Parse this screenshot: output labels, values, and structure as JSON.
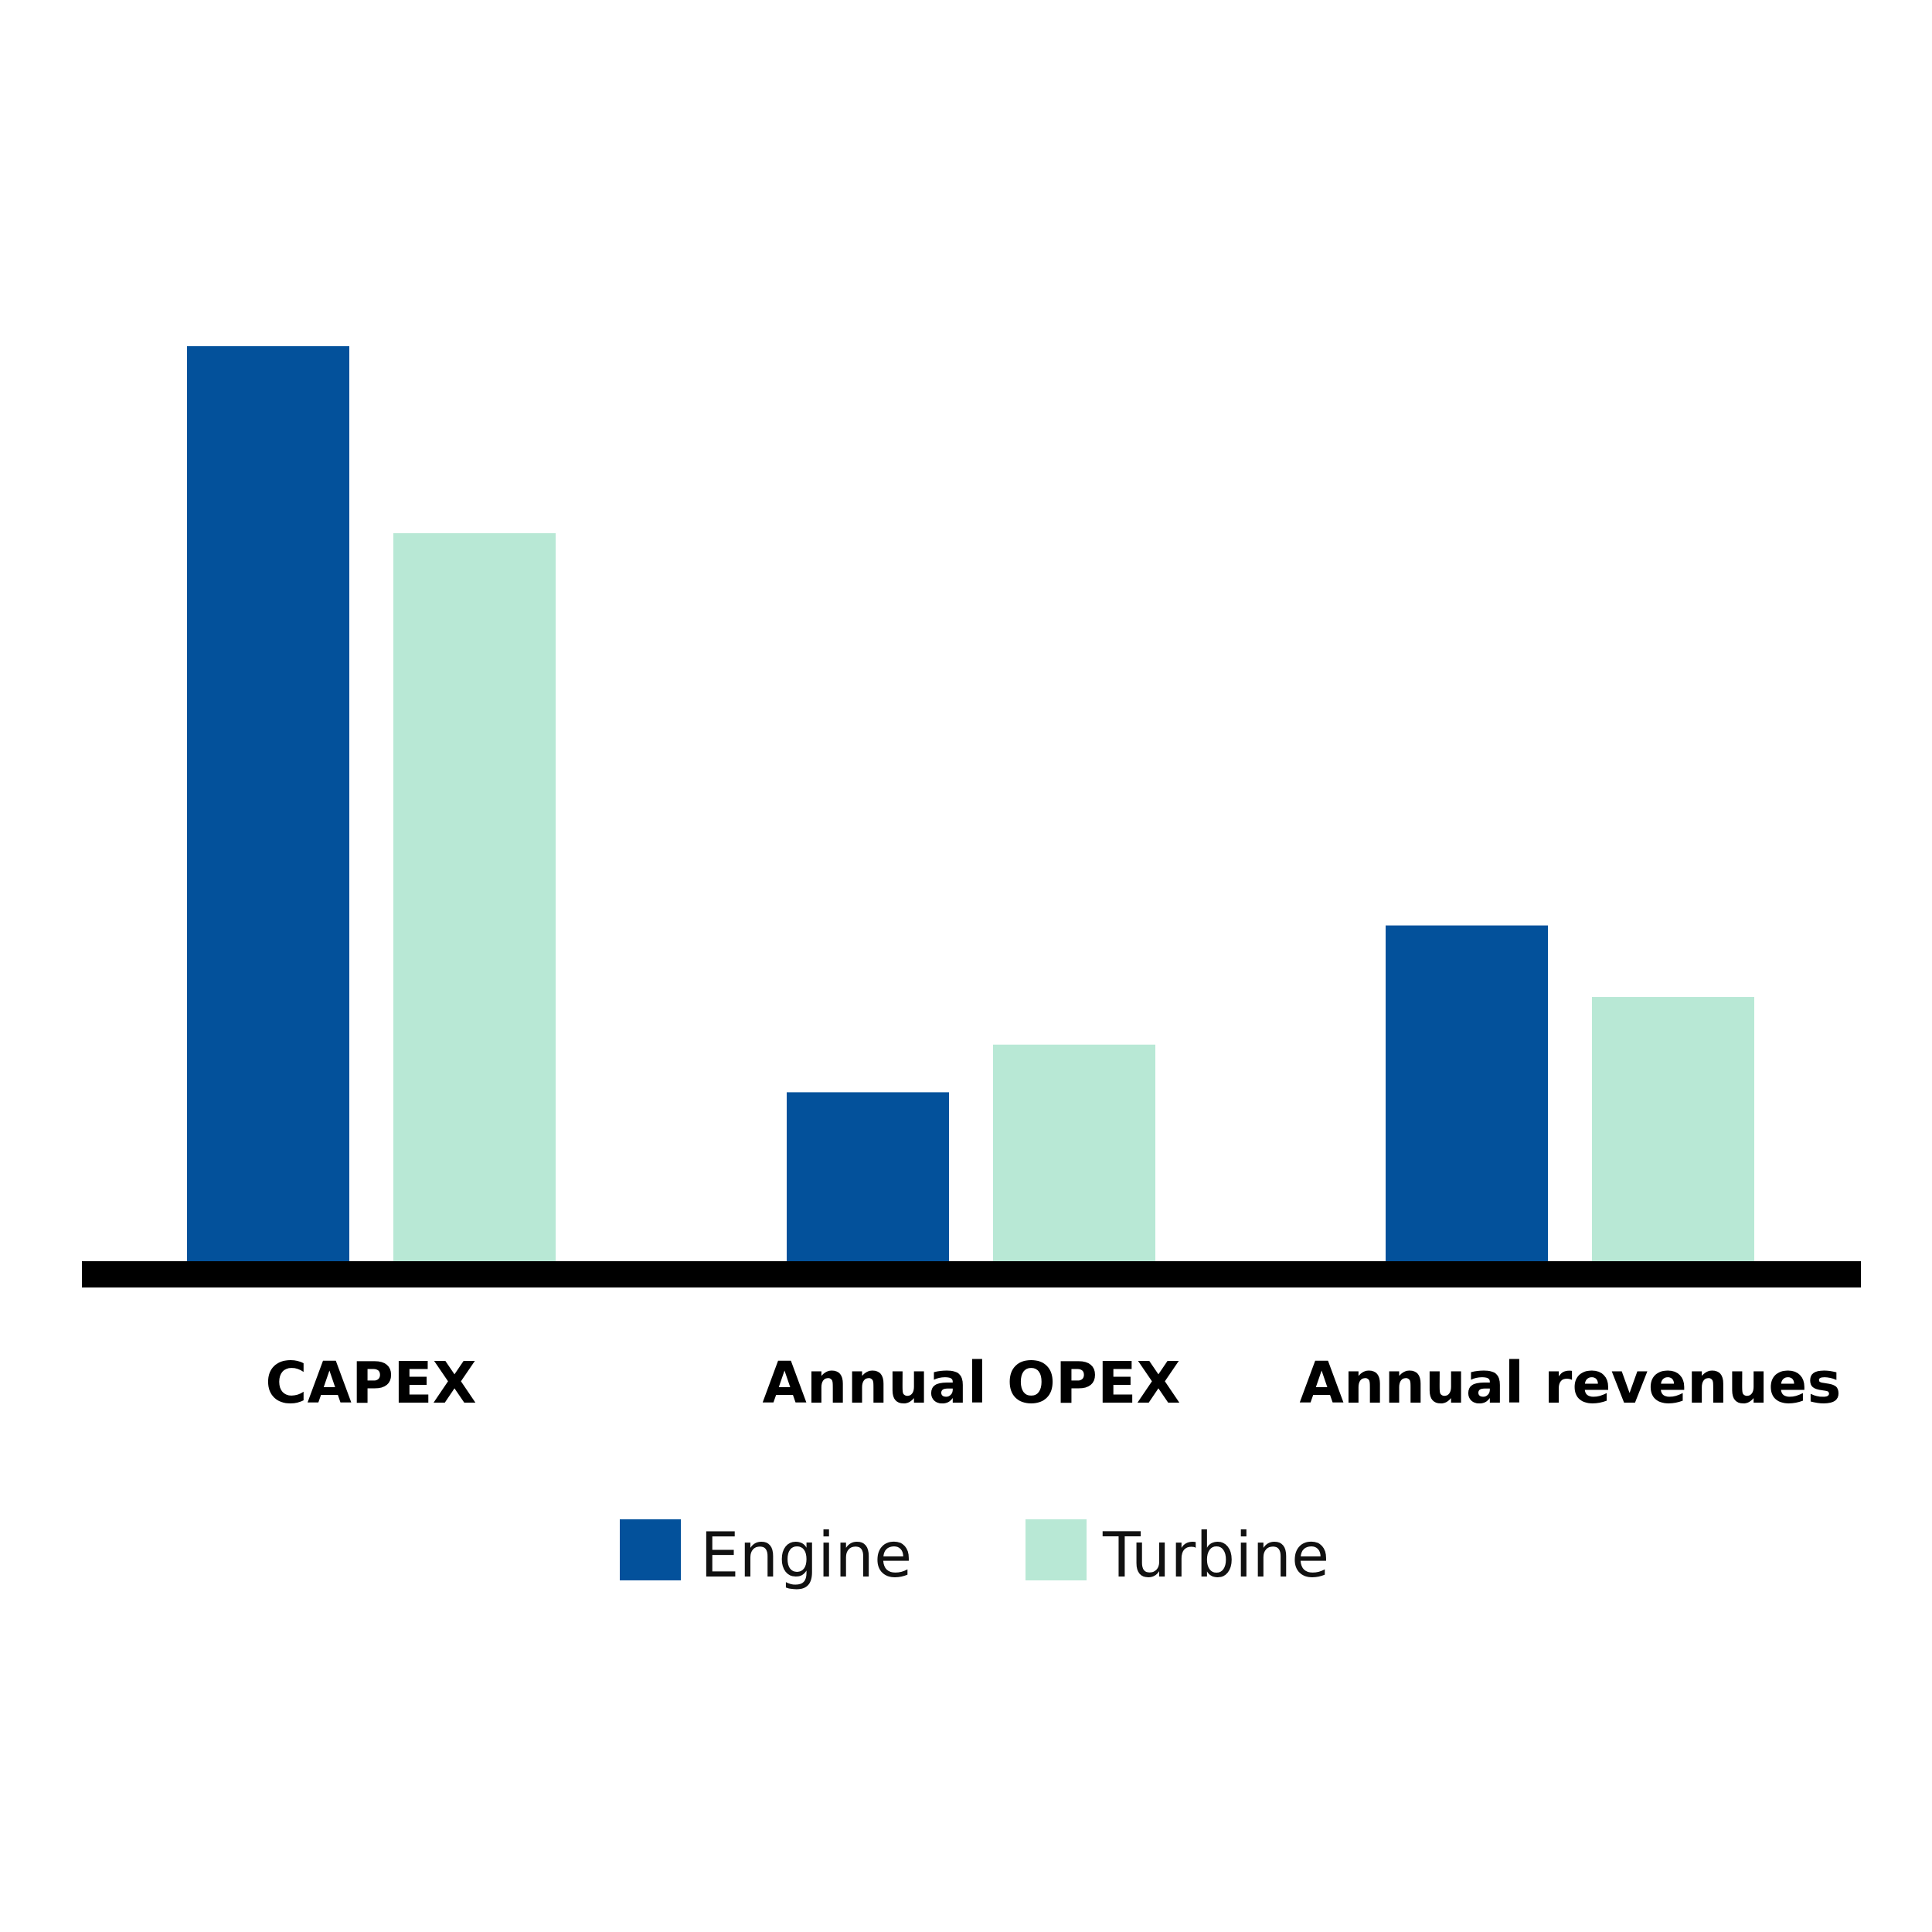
{
  "chart_data": {
    "type": "bar",
    "categories": [
      "CAPEX",
      "Annual OPEX",
      "Annual revenues"
    ],
    "series": [
      {
        "name": "Engine",
        "color": "#03519b",
        "values": [
          100,
          18.6,
          36.8
        ]
      },
      {
        "name": "Turbine",
        "color": "#b8e8d5",
        "values": [
          79.6,
          23.8,
          29
        ]
      }
    ],
    "ylim": [
      0,
      100
    ],
    "grid": false,
    "y_axis_visible": false,
    "legend_position": "bottom-center",
    "baseline_color": "#000000",
    "title": "",
    "xlabel": "",
    "ylabel": ""
  }
}
